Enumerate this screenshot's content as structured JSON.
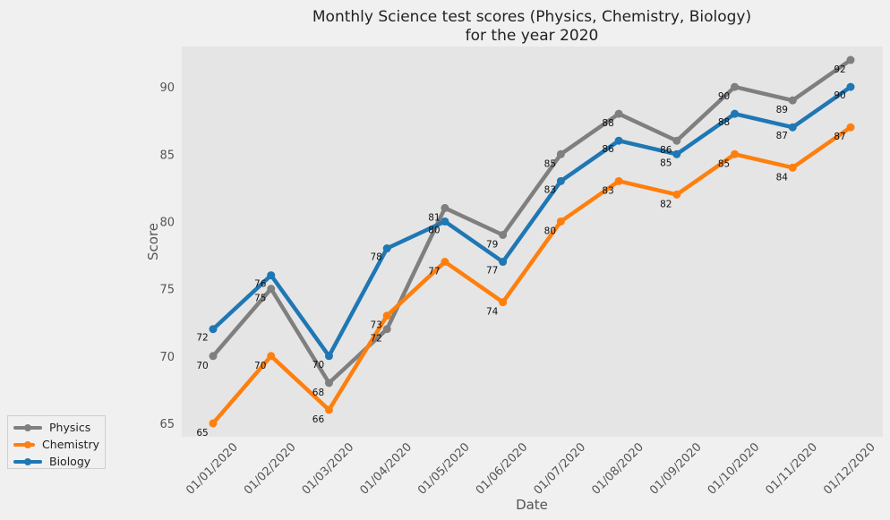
{
  "chart_data": {
    "type": "line",
    "title": "Monthly Science test scores (Physics, Chemistry, Biology)",
    "subtitle": "for the year 2020",
    "xlabel": "Date",
    "ylabel": "Score",
    "x": [
      "01/01/2020",
      "01/02/2020",
      "01/03/2020",
      "01/04/2020",
      "01/05/2020",
      "01/06/2020",
      "01/07/2020",
      "01/08/2020",
      "01/09/2020",
      "01/10/2020",
      "01/11/2020",
      "01/12/2020"
    ],
    "yticks": [
      65,
      70,
      75,
      80,
      85,
      90
    ],
    "ylim": [
      64,
      93
    ],
    "grid": false,
    "legend_position": "bottom-left outside",
    "series": [
      {
        "name": "Physics",
        "color": "#7f7f7f",
        "values": [
          70,
          75,
          68,
          72,
          81,
          79,
          85,
          88,
          86,
          90,
          89,
          92
        ]
      },
      {
        "name": "Chemistry",
        "color": "#ff7f0e",
        "values": [
          65,
          70,
          66,
          73,
          77,
          74,
          80,
          83,
          82,
          85,
          84,
          87
        ]
      },
      {
        "name": "Biology",
        "color": "#1f77b4",
        "values": [
          72,
          76,
          70,
          78,
          80,
          77,
          83,
          86,
          85,
          88,
          87,
          90
        ]
      }
    ]
  }
}
